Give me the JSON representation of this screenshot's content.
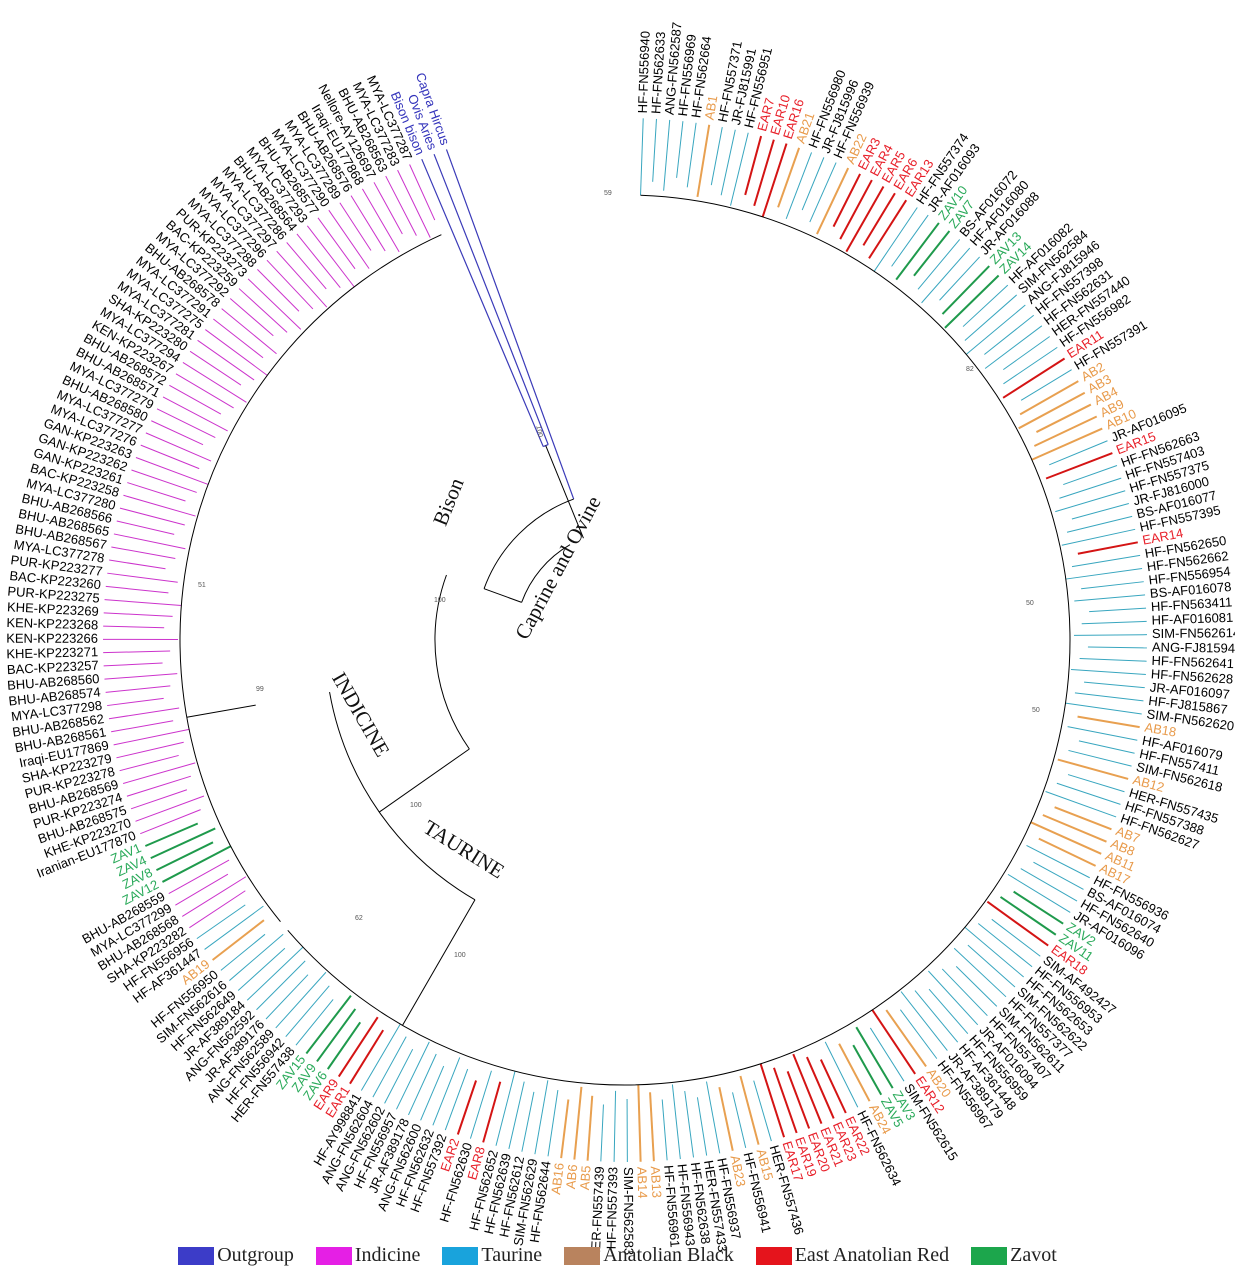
{
  "clades": {
    "bison": "Bison",
    "caprine": "Caprine and Ovine",
    "indicine": "INDICINE",
    "taurine": "TAURINE"
  },
  "bootstrap": [
    "100",
    "100",
    "99",
    "100",
    "100",
    "59",
    "82",
    "50",
    "51",
    "62",
    "50"
  ],
  "legend": [
    {
      "label": "Outgroup",
      "color": "#3c3cc8"
    },
    {
      "label": "Indicine",
      "color": "#e51fe5"
    },
    {
      "label": "Taurine",
      "color": "#19a3dc"
    },
    {
      "label": "Anatolian Black",
      "color": "#b9835e"
    },
    {
      "label": "East Anatolian Red",
      "color": "#e5141c"
    },
    {
      "label": "Zavot",
      "color": "#1ca64c"
    }
  ],
  "colors": {
    "O": "#3a3ab8",
    "I": "#cc33cc",
    "T": "#38a6bf",
    "A": "#e8a050",
    "E": "#d41414",
    "Z": "#1f9a4c"
  },
  "text_colors": {
    "O": "#3333bb",
    "I": "#000000",
    "T": "#000000",
    "A": "#e89a4a",
    "E": "#e8202a",
    "Z": "#2aaa5a"
  },
  "leaves": [
    "HF-FN556940",
    "HF-FN562633",
    "ANG-FN562587",
    "HF-FN556969",
    "HF-FN562664",
    "AB1",
    "HF-FN557371",
    "JR-FJ815991",
    "HF-FN556951",
    "EAR7",
    "EAR10",
    "EAR16",
    "AB21",
    "HF-FN556980",
    "JR-FJ815996",
    "HF-FN556939",
    "AB22",
    "EAR3",
    "EAR4",
    "EAR5",
    "EAR6",
    "EAR13",
    "HF-FN557374",
    "JR-AF016093",
    "ZAV10",
    "ZAV7",
    "BS-AF016072",
    "HF-AF016080",
    "JR-AF016088",
    "ZAV13",
    "ZAV14",
    "HF-AF016082",
    "SIM-FN562584",
    "ANG-FJ815946",
    "HF-FN557398",
    "HF-FN562631",
    "HER-FN557440",
    "HF-FN556982",
    "EAR11",
    "HF-FN557391",
    "AB2",
    "AB3",
    "AB4",
    "AB9",
    "AB10",
    "JR-AF016095",
    "EAR15",
    "HF-FN562663",
    "HF-FN557403",
    "HF-FN557375",
    "JR-FJ816000",
    "BS-AF016077",
    "HF-FN557395",
    "EAR14",
    "HF-FN562650",
    "HF-FN562662",
    "HF-FN556954",
    "BS-AF016078",
    "HF-FN563411",
    "HF-AF016081",
    "SIM-FN562614",
    "ANG-FJ815941",
    "HF-FN562641",
    "HF-FN562628",
    "JR-AF016097",
    "HF-FJ815867",
    "SIM-FN562620",
    "AB18",
    "HF-AF016079",
    "HF-FN557411",
    "SIM-FN562618",
    "AB12",
    "HER-FN557435",
    "HF-FN557388",
    "HF-FN562627",
    "AB7",
    "AB8",
    "AB11",
    "AB17",
    "HF-FN556936",
    "BS-AF016074",
    "HF-FN562640",
    "JR-AF016096",
    "ZAV2",
    "ZAV11",
    "EAR18",
    "SIM-AF492427",
    "HF-FN556953",
    "HF-FN562653",
    "SIM-FN562622",
    "HF-FN557377",
    "SIM-FN562611",
    "HF-FN557407",
    "JR-AF016094",
    "HF-FN556959",
    "HF-AF361448",
    "JR-AF389179",
    "HF-FN556967",
    "AB20",
    "EAR12",
    "SIM-FN562615",
    "ZAV3",
    "ZAV5",
    "AB24",
    "HF-FN562634",
    "EAR22",
    "EAR23",
    "EAR21",
    "EAR20",
    "EAR19",
    "EAR17",
    "HER-FN557436",
    "AB15",
    "HF-FN556941",
    "AB23",
    "HF-FN556937",
    "HER-FN557433",
    "HF-FN562638",
    "HF-FN556943",
    "HF-FN556961",
    "AB13",
    "AB14",
    "SIM-FN562583",
    "HF-FN557393",
    "HER-FN557439",
    "AB5",
    "AB6",
    "AB16",
    "HF-FN562644",
    "SIM-FN562629",
    "HF-FN562612",
    "HF-FN562639",
    "HF-FN562652",
    "EAR8",
    "HF-FN562630",
    "EAR2",
    "HF-FN557392",
    "HF-FN562632",
    "ANG-FN562600",
    "JR-AF389178",
    "HF-FN556957",
    "ANG-FN562602",
    "ANG-FN562604",
    "HF-AY998841",
    "EAR1",
    "EAR9",
    "ZAV6",
    "ZAV9",
    "ZAV15",
    "HER-FN557438",
    "HF-FN556942",
    "ANG-FN562589",
    "JR-AF389176",
    "ANG-FN562592",
    "JR-AF389184",
    "HF-FN562649",
    "SIM-FN562616",
    "HF-FN556950",
    "AB19",
    "HF-AF361447",
    "HF-FN556956",
    "SHA-KP223282",
    "BHU-AB268568",
    "MYA-LC377299",
    "BHU-AB268559",
    "ZAV12",
    "ZAV8",
    "ZAV4",
    "ZAV1",
    "Iranian-EU177870",
    "KHE-KP223270",
    "BHU-AB268575",
    "PUR-KP223274",
    "BHU-AB268569",
    "PUR-KP223278",
    "SHA-KP223279",
    "Iraqi-EU177869",
    "BHU-AB268561",
    "BHU-AB268562",
    "MYA-LC377298",
    "BHU-AB268574",
    "BHU-AB268560",
    "BAC-KP223257",
    "KHE-KP223271",
    "KEN-KP223266",
    "KEN-KP223268",
    "KHE-KP223269",
    "PUR-KP223275",
    "BAC-KP223260",
    "PUR-KP223277",
    "MYA-LC377278",
    "BHU-AB268567",
    "BHU-AB268565",
    "BHU-AB268566",
    "MYA-LC377280",
    "BAC-KP223258",
    "GAN-KP223261",
    "GAN-KP223262",
    "GAN-KP223263",
    "MYA-LC377276",
    "MYA-LC377277",
    "BHU-AB268580",
    "MYA-LC377279",
    "BHU-AB268571",
    "BHU-AB268572",
    "KEN-KP223267",
    "MYA-LC377294",
    "SHA-KP223280",
    "MYA-LC377281",
    "MYA-LC377275",
    "MYA-LC377291",
    "BHU-AB268578",
    "MYA-LC377292",
    "BAC-KP223259",
    "PUR-KP223273",
    "MYA-LC377288",
    "MYA-LC377296",
    "MYA-LC377297",
    "MYA-LC377286",
    "BHU-AB268564",
    "MYA-LC377293",
    "BHU-AB268577",
    "MYA-LC377290",
    "MYA-LC377289",
    "BHU-AB268576",
    "Iraqi-EU177868",
    "Nellore-AY126697",
    "BHU-AB268563",
    "MYA-LC377283",
    "MYA-LC377287",
    "Bison bison",
    "Ovis Aries",
    "Capra Hircus"
  ]
}
